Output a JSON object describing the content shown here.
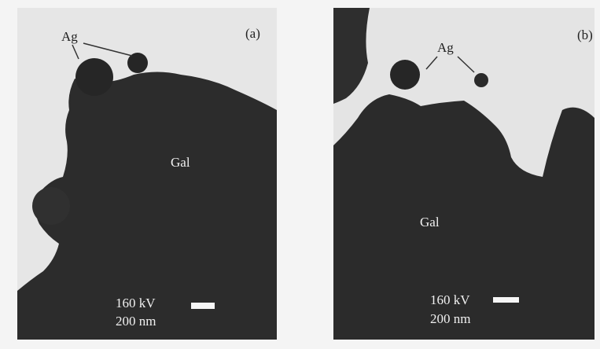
{
  "panels": [
    {
      "label": "(a)",
      "particle": "Ag",
      "substrate": "Gal",
      "voltage": "160 kV",
      "scale": "200 nm"
    },
    {
      "label": "(b)",
      "particle": "Ag",
      "substrate": "Gal",
      "voltage": "160 kV",
      "scale": "200 nm"
    }
  ]
}
